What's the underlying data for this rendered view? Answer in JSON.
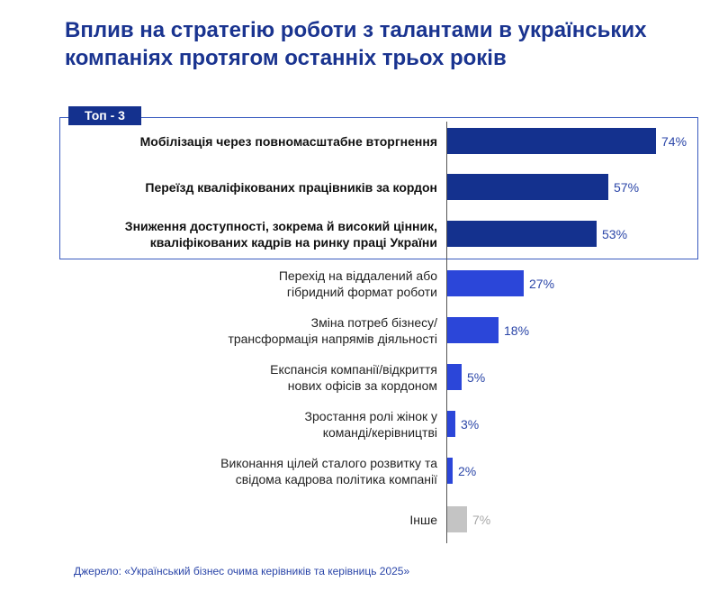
{
  "title": "Вплив на стратегію роботи з талантами в українських компаніях протягом останніх трьох років",
  "top_tab_label": "Топ - 3",
  "source": "Джерело: «Український бізнес очима керівників та керівниць 2025»",
  "colors": {
    "top": "#14318e",
    "regular": "#2b46d9",
    "other": "#c4c4c4",
    "label_top": "#2b46a8",
    "label_regular": "#2b46a8",
    "label_other": "#a8a8a8"
  },
  "chart_data": {
    "type": "bar",
    "orientation": "horizontal",
    "title": "Вплив на стратегію роботи з талантами в українських компаніях протягом останніх трьох років",
    "xlabel": "",
    "ylabel": "",
    "unit": "%",
    "xlim": [
      0,
      100
    ],
    "grid": false,
    "categories": [
      "Мобілізація через повномасштабне вторгнення",
      "Переїзд кваліфікованих працівників за кордон",
      "Зниження доступності, зокрема й високий цінник, кваліфікованих кадрів на ринку праці України",
      "Перехід на віддалений або гібридний формат роботи",
      "Зміна потреб бізнесу/ трансформація напрямів діяльності",
      "Експансія компанії/відкриття нових офісів за кордоном",
      "Зростання ролі жінок у команді/керівництві",
      "Виконання цілей сталого розвитку та свідома кадрова політика компанії",
      "Інше"
    ],
    "values": [
      74,
      57,
      53,
      27,
      18,
      5,
      3,
      2,
      7
    ],
    "labels": [
      "74%",
      "57%",
      "53%",
      "27%",
      "18%",
      "5%",
      "3%",
      "2%",
      "7%"
    ],
    "groups": [
      "top",
      "top",
      "top",
      "regular",
      "regular",
      "regular",
      "regular",
      "regular",
      "other"
    ],
    "rows": [
      {
        "line1": "Мобілізація через повномасштабне вторгнення",
        "line2": ""
      },
      {
        "line1": "Переїзд кваліфікованих працівників за кордон",
        "line2": ""
      },
      {
        "line1": "Зниження доступності, зокрема й високий цінник,",
        "line2": "кваліфікованих кадрів на ринку праці України"
      },
      {
        "line1": "Перехід на віддалений або",
        "line2": "гібридний формат роботи"
      },
      {
        "line1": "Зміна потреб бізнесу/",
        "line2": "трансформація напрямів діяльності"
      },
      {
        "line1": "Експансія компанії/відкриття",
        "line2": "нових офісів за кордоном"
      },
      {
        "line1": "Зростання ролі жінок у",
        "line2": "команді/керівництві"
      },
      {
        "line1": "Виконання цілей сталого розвитку та",
        "line2": "свідома кадрова політика компанії"
      },
      {
        "line1": "Інше",
        "line2": ""
      }
    ]
  }
}
